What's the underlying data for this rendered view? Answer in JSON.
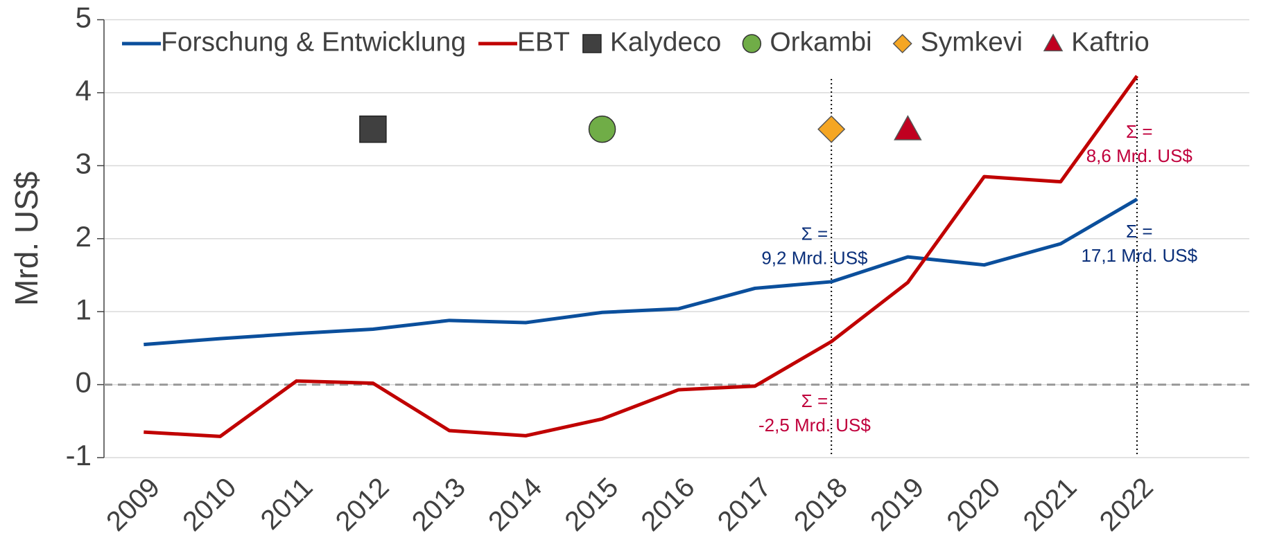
{
  "chart_data": {
    "type": "line",
    "y_label": "Mrd. US$",
    "x": [
      2009,
      2010,
      2011,
      2012,
      2013,
      2014,
      2015,
      2016,
      2017,
      2018,
      2019,
      2020,
      2021,
      2022
    ],
    "xlim": [
      2008.48,
      2023.47
    ],
    "ylim": [
      -1,
      5
    ],
    "yticks": [
      -1,
      0,
      1,
      2,
      3,
      4,
      5
    ],
    "grid": true,
    "zero_line": true,
    "series": [
      {
        "name": "Forschung & Entwicklung",
        "color": "#0b4f9c",
        "values": [
          0.55,
          0.63,
          0.7,
          0.76,
          0.88,
          0.85,
          0.99,
          1.04,
          1.32,
          1.41,
          1.75,
          1.64,
          1.93,
          2.54
        ]
      },
      {
        "name": "EBT",
        "color": "#c00000",
        "values": [
          -0.65,
          -0.71,
          0.05,
          0.02,
          -0.63,
          -0.7,
          -0.47,
          -0.07,
          -0.02,
          0.59,
          1.4,
          2.85,
          2.78,
          4.23
        ]
      }
    ],
    "markers": [
      {
        "name": "Kalydeco",
        "shape": "square",
        "color": "#404040",
        "x": 2012,
        "y": 3.5
      },
      {
        "name": "Orkambi",
        "shape": "circle",
        "color": "#70ad47",
        "x": 2015,
        "y": 3.5
      },
      {
        "name": "Symkevi",
        "shape": "diamond",
        "color": "#f5a623",
        "x": 2018,
        "y": 3.5
      },
      {
        "name": "Kaftrio",
        "shape": "triangle",
        "color": "#c00020",
        "x": 2019,
        "y": 3.5
      }
    ],
    "vlines": [
      2018,
      2022
    ],
    "annotations": [
      {
        "lines": [
          "Σ =",
          "9,2 Mrd. US$"
        ],
        "x": 2017.78,
        "y": 2.05,
        "color": "#0a2f7a"
      },
      {
        "lines": [
          "Σ =",
          "-2,5 Mrd. US$"
        ],
        "x": 2017.78,
        "y": -0.24,
        "color": "#c0003c"
      },
      {
        "lines": [
          "Σ =",
          "8,6 Mrd. US$"
        ],
        "x": 2022.03,
        "y": 3.45,
        "color": "#c0003c"
      },
      {
        "lines": [
          "Σ =",
          "17,1 Mrd. US$"
        ],
        "x": 2022.03,
        "y": 2.08,
        "color": "#0a2f7a"
      }
    ]
  }
}
